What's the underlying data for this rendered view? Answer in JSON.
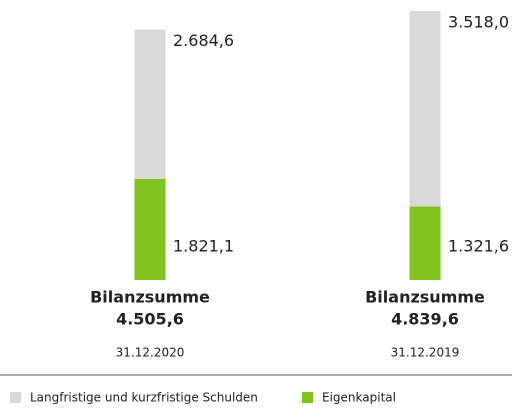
{
  "chart_data": {
    "type": "stacked_bar",
    "categories": [
      "31.12.2020",
      "31.12.2019"
    ],
    "series": [
      {
        "name": "Langfristige und kurzfristige Schulden",
        "color": "#d9d9d9",
        "values": [
          2684.6,
          3518.0
        ],
        "value_labels": [
          "2.684,6",
          "3.518,0"
        ]
      },
      {
        "name": "Eigenkapital",
        "color": "#7fc31c",
        "values": [
          1821.1,
          1321.6
        ],
        "value_labels": [
          "1.821,1",
          "1.321,6"
        ]
      }
    ],
    "total_title": "Bilanzsumme",
    "totals": [
      4505.6,
      4839.6
    ],
    "total_labels": [
      "4.505,6",
      "4.839,6"
    ]
  }
}
